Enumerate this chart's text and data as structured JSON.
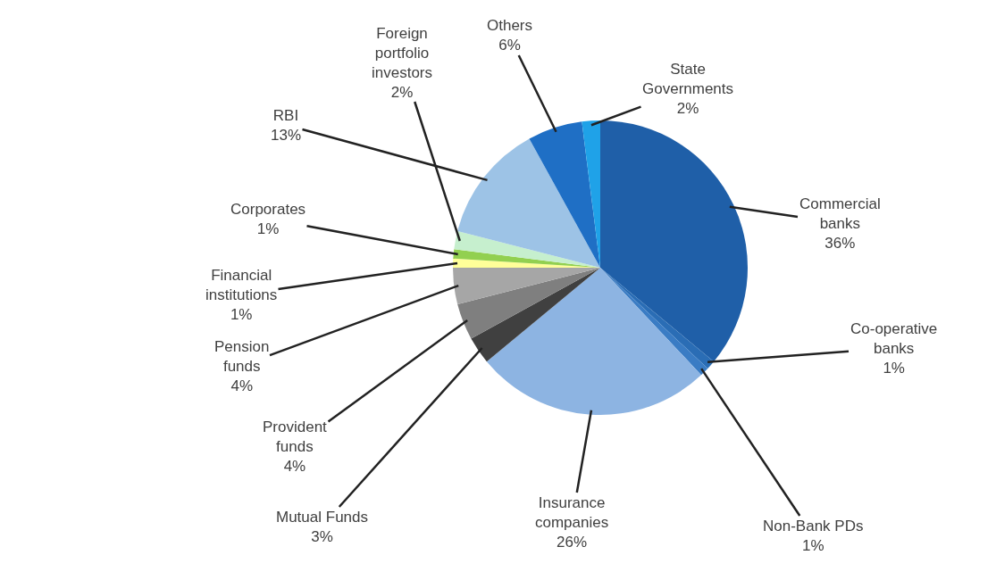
{
  "chart_data": {
    "type": "pie",
    "categories": [
      "Commercial banks",
      "Co-operative banks",
      "Non-Bank PDs",
      "Insurance companies",
      "Mutual Funds",
      "Provident funds",
      "Pension funds",
      "Financial institutions",
      "Corporates",
      "Foreign portfolio investors",
      "RBI",
      "Others",
      "State Governments"
    ],
    "values": [
      36,
      1,
      1,
      26,
      3,
      4,
      4,
      1,
      1,
      2,
      13,
      6,
      2
    ],
    "value_labels": [
      "36%",
      "1%",
      "1%",
      "26%",
      "3%",
      "4%",
      "4%",
      "1%",
      "1%",
      "2%",
      "13%",
      "6%",
      "2%"
    ],
    "colors": [
      "#1f5fa8",
      "#2a6db5",
      "#3a7cc4",
      "#8db4e2",
      "#404040",
      "#7f7f7f",
      "#a6a6a6",
      "#ffff99",
      "#92d050",
      "#c6efce",
      "#9dc3e6",
      "#1f6fc5",
      "#1fa2e8"
    ],
    "legend": false
  }
}
